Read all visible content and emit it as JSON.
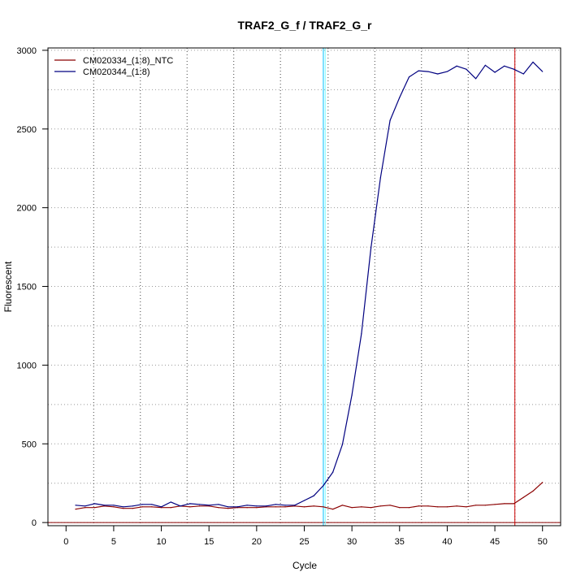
{
  "chart_data": {
    "type": "line",
    "title": "TRAF2_G_f / TRAF2_G_r",
    "xlabel": "Cycle",
    "ylabel": "Fluorescent",
    "xlim": [
      -1.9,
      51.9
    ],
    "ylim": [
      -20,
      3015
    ],
    "x_ticks": [
      0,
      5,
      10,
      15,
      20,
      25,
      30,
      35,
      40,
      45,
      50
    ],
    "y_ticks": [
      0,
      500,
      1000,
      1500,
      2000,
      2500,
      3000
    ],
    "x_grid": [
      2.9,
      7.8,
      12.7,
      17.6,
      22.5,
      27.5,
      32.4,
      37.3,
      42.2,
      47.1
    ],
    "y_grid": [
      0,
      250,
      500,
      750,
      1000,
      1250,
      1500,
      1750,
      2000,
      2250,
      2500,
      2750,
      3000
    ],
    "grid": true,
    "legend_position": "top-left",
    "series": [
      {
        "name": "CM020334_(1:8)_NTC",
        "color": "#8b0000",
        "x": [
          1,
          2,
          3,
          4,
          5,
          6,
          7,
          8,
          9,
          10,
          11,
          12,
          13,
          14,
          15,
          16,
          17,
          18,
          19,
          20,
          21,
          22,
          23,
          24,
          25,
          26,
          27,
          28,
          29,
          30,
          31,
          32,
          33,
          34,
          35,
          36,
          37,
          38,
          39,
          40,
          41,
          42,
          43,
          44,
          45,
          46,
          47,
          48,
          49,
          50
        ],
        "values": [
          85,
          95,
          95,
          105,
          100,
          90,
          90,
          100,
          100,
          95,
          95,
          105,
          100,
          105,
          105,
          95,
          90,
          95,
          95,
          95,
          100,
          100,
          100,
          105,
          100,
          105,
          100,
          85,
          110,
          95,
          100,
          95,
          105,
          110,
          95,
          95,
          105,
          105,
          100,
          100,
          105,
          100,
          110,
          110,
          115,
          120,
          120,
          160,
          200,
          255
        ]
      },
      {
        "name": "CM020344_(1:8)",
        "color": "#000080",
        "x": [
          1,
          2,
          3,
          4,
          5,
          6,
          7,
          8,
          9,
          10,
          11,
          12,
          13,
          14,
          15,
          16,
          17,
          18,
          19,
          20,
          21,
          22,
          23,
          24,
          25,
          26,
          27,
          28,
          29,
          30,
          31,
          32,
          33,
          34,
          35,
          36,
          37,
          38,
          39,
          40,
          41,
          42,
          43,
          44,
          45,
          46,
          47,
          48,
          49,
          50
        ],
        "values": [
          110,
          105,
          120,
          110,
          110,
          100,
          105,
          115,
          115,
          100,
          130,
          105,
          120,
          115,
          110,
          115,
          100,
          100,
          110,
          105,
          105,
          115,
          110,
          110,
          140,
          170,
          235,
          320,
          495,
          810,
          1200,
          1745,
          2190,
          2555,
          2700,
          2830,
          2870,
          2865,
          2850,
          2865,
          2900,
          2880,
          2820,
          2905,
          2860,
          2900,
          2880,
          2850,
          2925,
          2865
        ]
      }
    ],
    "threshold": {
      "value": 0,
      "color": "#8b0000"
    },
    "vertical_markers": [
      {
        "x": 27.0,
        "color": "#00bfff"
      },
      {
        "x": 27.2,
        "color": "#80ffff"
      },
      {
        "x": 47.1,
        "color": "#cc0000"
      }
    ]
  }
}
